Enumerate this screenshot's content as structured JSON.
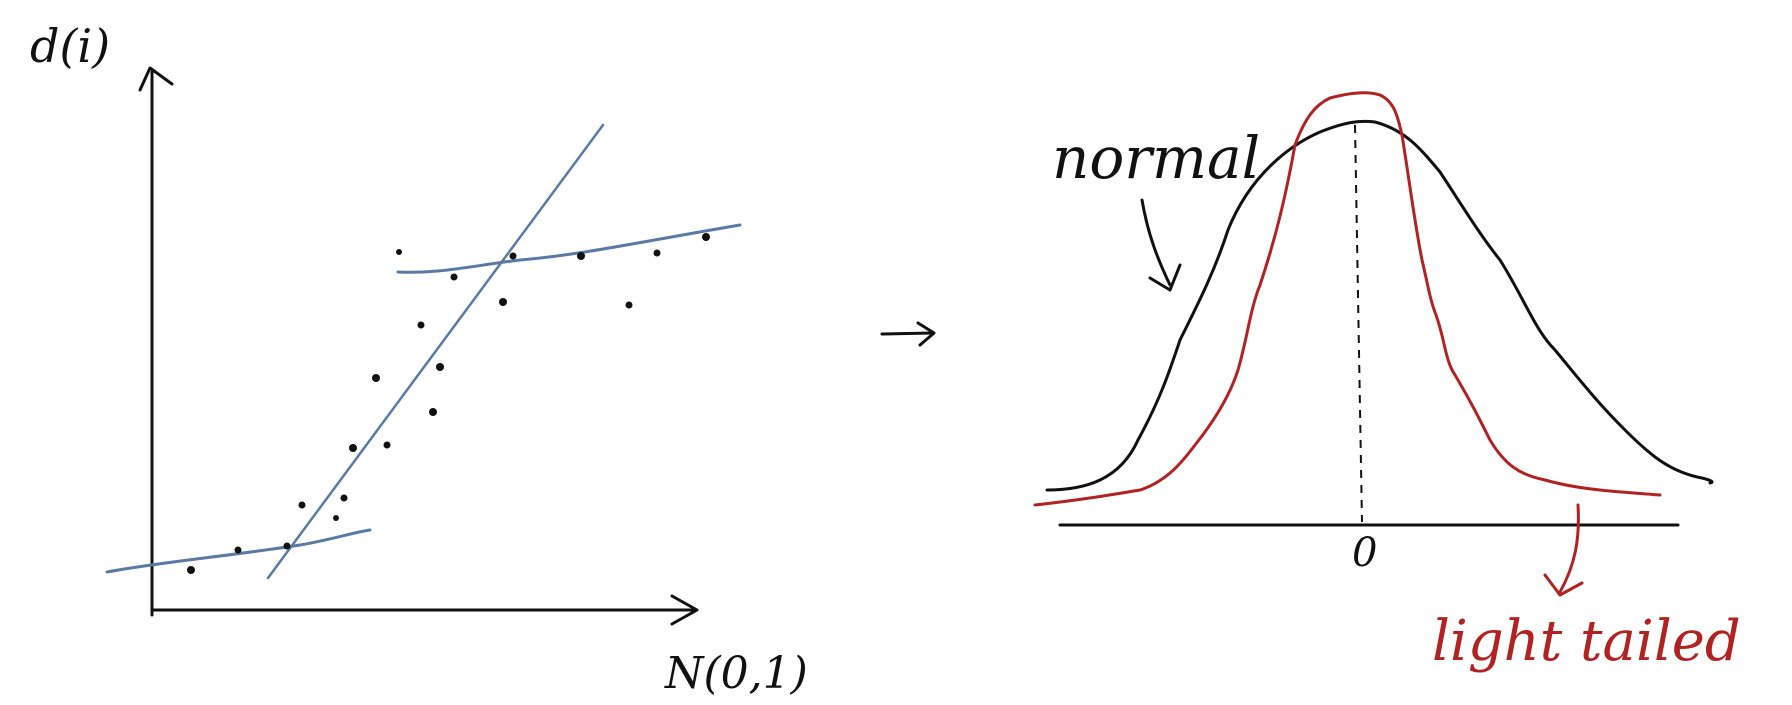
{
  "left_plot": {
    "y_label": "d(i)",
    "x_label": "N(0,1)"
  },
  "right_plot": {
    "zero_label": "0",
    "normal_label": "normal",
    "light_tailed_label": "light tailed"
  },
  "colors": {
    "ink": "#111111",
    "blue_line": "#5b7aa3",
    "red": "#b22222"
  }
}
